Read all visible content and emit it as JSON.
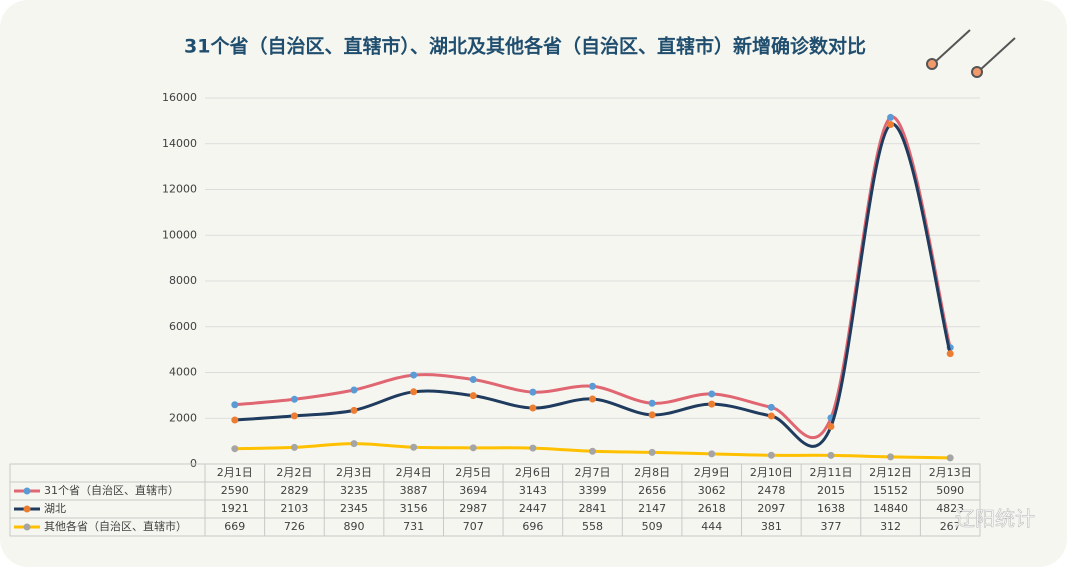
{
  "chart_data": {
    "type": "line",
    "title": "31个省（自治区、直辖市）、湖北及其他各省（自治区、直辖市）新增确诊数对比",
    "categories": [
      "2月1日",
      "2月2日",
      "2月3日",
      "2月4日",
      "2月5日",
      "2月6日",
      "2月7日",
      "2月8日",
      "2月9日",
      "2月10日",
      "2月11日",
      "2月12日",
      "2月13日"
    ],
    "series": [
      {
        "name": "31个省（自治区、直辖市）",
        "color": "#e06672",
        "marker_color": "#5b9bd5",
        "values": [
          2590,
          2829,
          3235,
          3887,
          3694,
          3143,
          3399,
          2656,
          3062,
          2478,
          2015,
          15152,
          5090
        ]
      },
      {
        "name": "湖北",
        "color": "#1f3b5e",
        "marker_color": "#ed7d31",
        "values": [
          1921,
          2103,
          2345,
          3156,
          2987,
          2447,
          2841,
          2147,
          2618,
          2097,
          1638,
          14840,
          4823
        ]
      },
      {
        "name": "其他各省（自治区、直辖市）",
        "color": "#ffc000",
        "marker_color": "#a5a5a5",
        "values": [
          669,
          726,
          890,
          731,
          707,
          696,
          558,
          509,
          444,
          381,
          377,
          312,
          267
        ]
      }
    ],
    "ylim": [
      0,
      16000
    ],
    "yticks": [
      0,
      2000,
      4000,
      6000,
      8000,
      10000,
      12000,
      14000,
      16000
    ],
    "grid": true,
    "watermark": "辽阳统计"
  }
}
